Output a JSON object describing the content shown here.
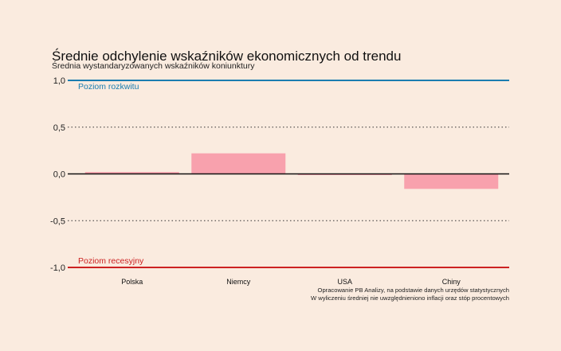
{
  "chart_data": {
    "type": "bar",
    "title": "Średnie odchylenie wskaźników ekonomicznych od trendu",
    "subtitle": "Średnia wystandaryzowanych wskaźników koniunktury",
    "categories": [
      "Polska",
      "Niemcy",
      "USA",
      "Chiny"
    ],
    "values": [
      0.02,
      0.22,
      0.0,
      -0.16
    ],
    "ylim": [
      -1.0,
      1.0
    ],
    "yticks": [
      {
        "value": 1.0,
        "label": "1,0"
      },
      {
        "value": 0.5,
        "label": "0,5"
      },
      {
        "value": 0.0,
        "label": "0,0"
      },
      {
        "value": -0.5,
        "label": "-0,5"
      },
      {
        "value": -1.0,
        "label": "-1,0"
      }
    ],
    "reference_lines": [
      {
        "value": 1.0,
        "label": "Poziom rozkwitu",
        "color": "#1a7db0"
      },
      {
        "value": -1.0,
        "label": "Poziom recesyjny",
        "color": "#cc2222"
      }
    ],
    "bar_color": "#f8a1ad",
    "grid": "dotted",
    "notes": [
      "Opracowanie PB Analizy, na podstawie danych urzędów statystycznych",
      "W wyliczeniu średniej nie uwzględnieniono inflacji oraz stóp procentowych"
    ]
  }
}
